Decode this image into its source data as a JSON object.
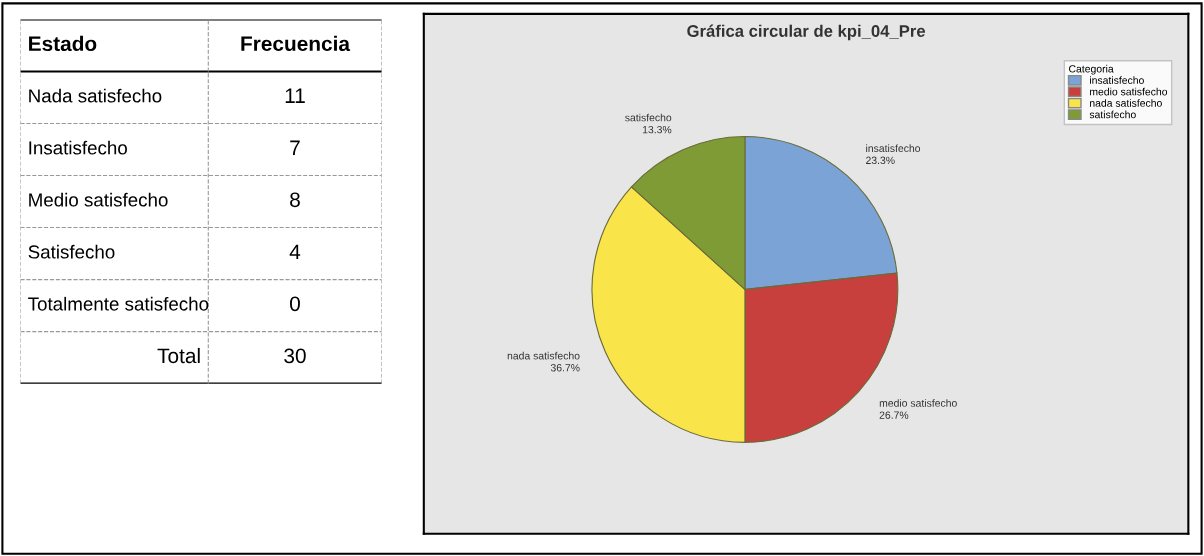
{
  "chart_data": [
    {
      "type": "other",
      "xlabel": "Estado",
      "ylabel": "Frecuencia",
      "categories": [
        "Nada satisfecho",
        "Insatisfecho",
        "Medio satisfecho",
        "Satisfecho",
        "Totalmente satisfecho"
      ],
      "values": [
        11,
        7,
        8,
        4,
        0
      ],
      "data_labels": true,
      "annotations": [
        "Total",
        "30"
      ]
    },
    {
      "type": "pie",
      "title": "Gráfica circular de kpi_04_Pre",
      "legend_title": "Categoria",
      "legend": "top right",
      "categories": [
        "insatisfecho",
        "medio satisfecho",
        "nada satisfecho",
        "satisfecho"
      ],
      "values": [
        23.3,
        26.7,
        36.7,
        13.3
      ],
      "value_labels": [
        "23.3%",
        "26.7%",
        "36.7%",
        "13.3%"
      ],
      "colors": [
        "#7ba3d6",
        "#c8403e",
        "#f9e54a",
        "#7f9b36"
      ]
    }
  ]
}
